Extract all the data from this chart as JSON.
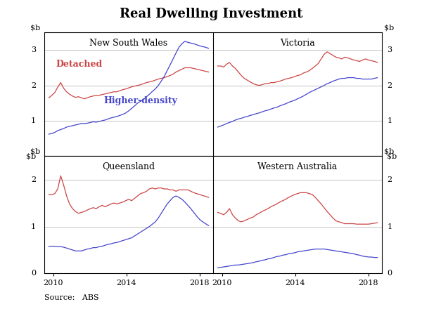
{
  "title": "Real Dwelling Investment",
  "panels": [
    "New South Wales",
    "Victoria",
    "Queensland",
    "Western Australia"
  ],
  "red": "#cc4444",
  "blue": "#4444cc",
  "source": "Source:   ABS",
  "bg": "#ffffff",
  "grid_color": "#aaaaaa",
  "nsw_det": [
    1.65,
    1.72,
    1.8,
    1.95,
    2.08,
    1.92,
    1.82,
    1.75,
    1.7,
    1.66,
    1.68,
    1.65,
    1.62,
    1.65,
    1.68,
    1.7,
    1.72,
    1.72,
    1.74,
    1.76,
    1.78,
    1.8,
    1.82,
    1.82,
    1.85,
    1.88,
    1.9,
    1.93,
    1.96,
    1.98,
    2.0,
    2.02,
    2.05,
    2.08,
    2.1,
    2.12,
    2.15,
    2.18,
    2.2,
    2.22,
    2.25,
    2.28,
    2.32,
    2.38,
    2.42,
    2.46,
    2.5,
    2.5,
    2.5,
    2.48,
    2.46,
    2.44,
    2.42,
    2.4,
    2.38
  ],
  "nsw_hd": [
    0.62,
    0.64,
    0.67,
    0.72,
    0.75,
    0.78,
    0.82,
    0.84,
    0.86,
    0.88,
    0.9,
    0.92,
    0.92,
    0.93,
    0.95,
    0.97,
    0.96,
    0.98,
    1.0,
    1.02,
    1.05,
    1.08,
    1.1,
    1.12,
    1.15,
    1.18,
    1.22,
    1.28,
    1.35,
    1.42,
    1.5,
    1.55,
    1.6,
    1.68,
    1.75,
    1.83,
    1.9,
    2.0,
    2.12,
    2.25,
    2.42,
    2.58,
    2.75,
    2.92,
    3.08,
    3.18,
    3.25,
    3.22,
    3.2,
    3.18,
    3.15,
    3.12,
    3.1,
    3.08,
    3.05
  ],
  "vic_det": [
    2.55,
    2.55,
    2.52,
    2.6,
    2.65,
    2.55,
    2.48,
    2.38,
    2.28,
    2.2,
    2.15,
    2.1,
    2.05,
    2.02,
    2.0,
    2.02,
    2.05,
    2.05,
    2.08,
    2.08,
    2.1,
    2.12,
    2.15,
    2.18,
    2.2,
    2.22,
    2.25,
    2.28,
    2.3,
    2.35,
    2.38,
    2.42,
    2.48,
    2.55,
    2.62,
    2.75,
    2.88,
    2.95,
    2.9,
    2.85,
    2.8,
    2.78,
    2.75,
    2.8,
    2.78,
    2.75,
    2.72,
    2.7,
    2.68,
    2.72,
    2.75,
    2.72,
    2.7,
    2.68,
    2.65
  ],
  "vic_hd": [
    0.82,
    0.85,
    0.88,
    0.92,
    0.95,
    0.98,
    1.02,
    1.05,
    1.07,
    1.1,
    1.12,
    1.15,
    1.17,
    1.2,
    1.22,
    1.25,
    1.28,
    1.3,
    1.33,
    1.36,
    1.38,
    1.42,
    1.45,
    1.48,
    1.52,
    1.55,
    1.58,
    1.62,
    1.66,
    1.7,
    1.75,
    1.8,
    1.84,
    1.88,
    1.92,
    1.96,
    2.0,
    2.05,
    2.08,
    2.12,
    2.15,
    2.18,
    2.2,
    2.2,
    2.22,
    2.22,
    2.22,
    2.2,
    2.2,
    2.18,
    2.18,
    2.18,
    2.18,
    2.2,
    2.22
  ],
  "qld_det": [
    1.68,
    1.68,
    1.7,
    1.8,
    2.08,
    1.88,
    1.65,
    1.48,
    1.38,
    1.32,
    1.28,
    1.3,
    1.32,
    1.35,
    1.38,
    1.4,
    1.38,
    1.42,
    1.45,
    1.42,
    1.45,
    1.48,
    1.5,
    1.48,
    1.5,
    1.52,
    1.55,
    1.58,
    1.55,
    1.6,
    1.65,
    1.7,
    1.72,
    1.75,
    1.8,
    1.82,
    1.8,
    1.82,
    1.82,
    1.8,
    1.8,
    1.78,
    1.78,
    1.75,
    1.78,
    1.78,
    1.78,
    1.78,
    1.75,
    1.72,
    1.7,
    1.68,
    1.66,
    1.64,
    1.62
  ],
  "qld_hd": [
    0.58,
    0.58,
    0.58,
    0.57,
    0.57,
    0.56,
    0.54,
    0.52,
    0.5,
    0.48,
    0.48,
    0.48,
    0.5,
    0.52,
    0.53,
    0.55,
    0.55,
    0.57,
    0.58,
    0.6,
    0.62,
    0.63,
    0.65,
    0.66,
    0.68,
    0.7,
    0.72,
    0.74,
    0.76,
    0.8,
    0.84,
    0.88,
    0.92,
    0.96,
    1.0,
    1.05,
    1.1,
    1.18,
    1.28,
    1.38,
    1.48,
    1.55,
    1.62,
    1.65,
    1.62,
    1.58,
    1.52,
    1.45,
    1.38,
    1.3,
    1.22,
    1.15,
    1.1,
    1.06,
    1.02
  ],
  "wa_det": [
    1.3,
    1.28,
    1.25,
    1.3,
    1.38,
    1.25,
    1.18,
    1.12,
    1.1,
    1.12,
    1.15,
    1.18,
    1.2,
    1.25,
    1.28,
    1.32,
    1.35,
    1.38,
    1.42,
    1.45,
    1.48,
    1.52,
    1.55,
    1.58,
    1.62,
    1.65,
    1.68,
    1.7,
    1.72,
    1.72,
    1.72,
    1.7,
    1.68,
    1.62,
    1.55,
    1.48,
    1.4,
    1.32,
    1.25,
    1.18,
    1.12,
    1.1,
    1.08,
    1.06,
    1.06,
    1.06,
    1.06,
    1.05,
    1.05,
    1.05,
    1.05,
    1.05,
    1.06,
    1.07,
    1.08
  ],
  "wa_hd": [
    0.12,
    0.13,
    0.14,
    0.15,
    0.16,
    0.17,
    0.18,
    0.18,
    0.19,
    0.2,
    0.21,
    0.22,
    0.23,
    0.25,
    0.26,
    0.28,
    0.29,
    0.31,
    0.32,
    0.34,
    0.36,
    0.37,
    0.39,
    0.4,
    0.42,
    0.43,
    0.44,
    0.46,
    0.47,
    0.48,
    0.49,
    0.5,
    0.51,
    0.52,
    0.52,
    0.52,
    0.52,
    0.51,
    0.5,
    0.49,
    0.48,
    0.47,
    0.46,
    0.45,
    0.44,
    0.43,
    0.42,
    0.4,
    0.39,
    0.37,
    0.36,
    0.35,
    0.35,
    0.34,
    0.34
  ]
}
